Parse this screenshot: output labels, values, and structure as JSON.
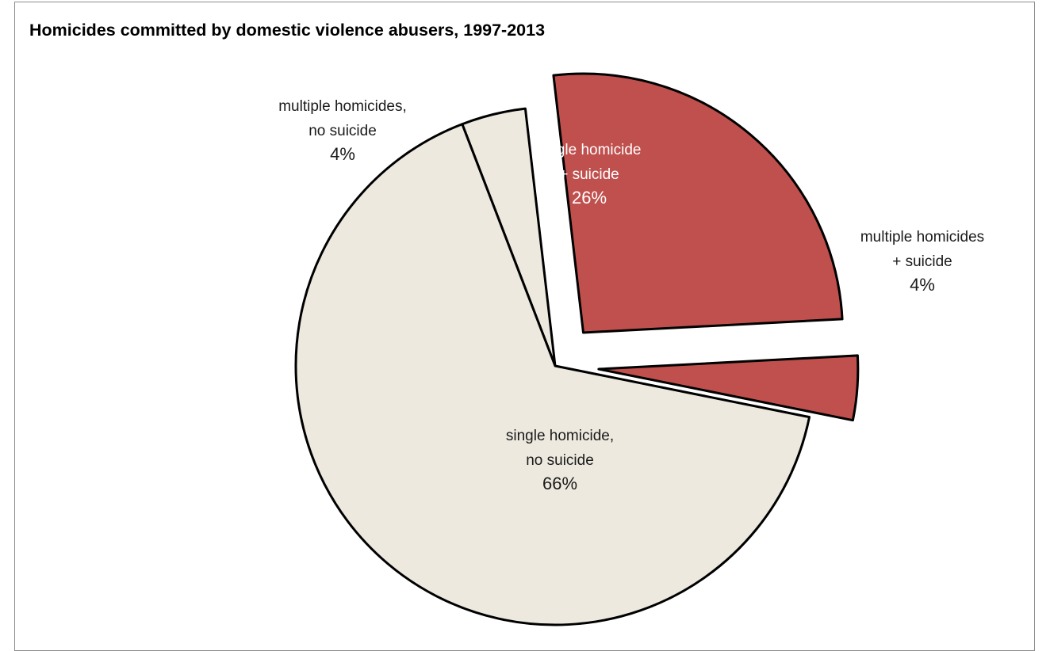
{
  "chart_data": {
    "type": "pie",
    "title": "Homicides committed by domestic violence abusers, 1997-2013",
    "start_angle_deg": 339,
    "direction": "clockwise",
    "slices": [
      {
        "name_lines": [
          "multiple homicides,",
          "no suicide"
        ],
        "value_label": "4%",
        "value": 4,
        "exploded": false,
        "label_placement": "outside",
        "color": "#ede9df"
      },
      {
        "name_lines": [
          "single homicide",
          "+ suicide"
        ],
        "value_label": "26%",
        "value": 26,
        "exploded": true,
        "label_placement": "inside",
        "color": "#c0504d"
      },
      {
        "name_lines": [
          "multiple homicides",
          "+ suicide"
        ],
        "value_label": "4%",
        "value": 4,
        "exploded": true,
        "label_placement": "outside",
        "color": "#c0504d"
      },
      {
        "name_lines": [
          "single homicide,",
          "no suicide"
        ],
        "value_label": "66%",
        "value": 66,
        "exploded": false,
        "label_placement": "inside",
        "color": "#ede9df"
      }
    ],
    "colors": {
      "light_slice": "#ede9df",
      "red_slice": "#c0504d",
      "outline": "#000000",
      "label_on_red": "#ffffff",
      "label_on_light": "#1a1a1a"
    }
  }
}
